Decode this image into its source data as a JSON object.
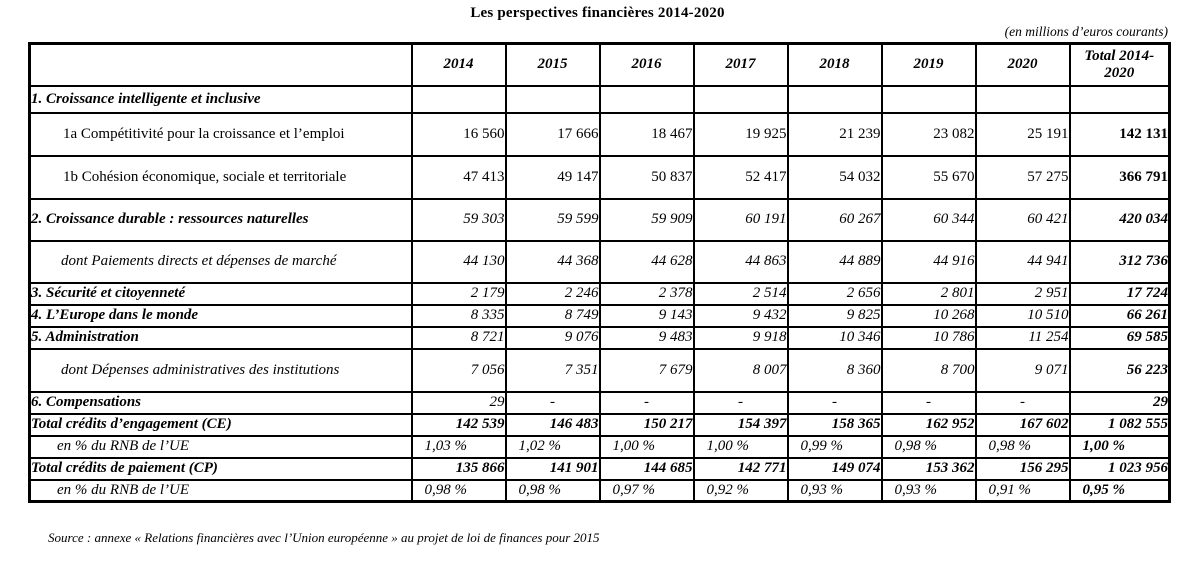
{
  "title": "Les perspectives financières 2014-2020",
  "subtitle": "(en millions d’euros courants)",
  "source": "Source : annexe « Relations financières avec l’Union européenne » au projet de loi de finances pour 2015",
  "table": {
    "columns": [
      "",
      "2014",
      "2015",
      "2016",
      "2017",
      "2018",
      "2019",
      "2020",
      "Total 2014-2020"
    ],
    "rows": [
      {
        "kind": "section",
        "label": "1. Croissance intelligente et inclusive",
        "values": [
          "",
          "",
          "",
          "",
          "",
          "",
          ""
        ],
        "total": ""
      },
      {
        "kind": "subplain",
        "label": "1a Compétitivité pour la croissance et l’emploi",
        "values": [
          "16 560",
          "17 666",
          "18 467",
          "19 925",
          "21 239",
          "23 082",
          "25 191"
        ],
        "total": "142 131"
      },
      {
        "kind": "subplain",
        "label": "1b Cohésion économique, sociale et territoriale",
        "values": [
          "47 413",
          "49 147",
          "50 837",
          "52 417",
          "54 032",
          "55 670",
          "57 275"
        ],
        "total": "366 791"
      },
      {
        "kind": "section",
        "label": "2. Croissance durable : ressources naturelles",
        "values": [
          "59 303",
          "59 599",
          "59 909",
          "60 191",
          "60 267",
          "60 344",
          "60 421"
        ],
        "total": "420 034"
      },
      {
        "kind": "subitalic",
        "label": "dont Paiements directs et dépenses de marché",
        "values": [
          "44 130",
          "44 368",
          "44 628",
          "44 863",
          "44 889",
          "44 916",
          "44 941"
        ],
        "total": "312 736"
      },
      {
        "kind": "section",
        "label": "3. Sécurité et citoyenneté",
        "values": [
          "2 179",
          "2 246",
          "2 378",
          "2 514",
          "2 656",
          "2 801",
          "2 951"
        ],
        "total": "17 724"
      },
      {
        "kind": "section",
        "label": "4. L’Europe dans le monde",
        "values": [
          "8 335",
          "8 749",
          "9 143",
          "9 432",
          "9 825",
          "10 268",
          "10 510"
        ],
        "total": "66 261"
      },
      {
        "kind": "section",
        "label": "5. Administration",
        "values": [
          "8 721",
          "9 076",
          "9 483",
          "9 918",
          "10 346",
          "10 786",
          "11 254"
        ],
        "total": "69 585"
      },
      {
        "kind": "subitalic",
        "label": "dont Dépenses administratives des institutions",
        "values": [
          "7 056",
          "7 351",
          "7 679",
          "8 007",
          "8 360",
          "8 700",
          "9 071"
        ],
        "total": "56 223"
      },
      {
        "kind": "section",
        "label": "6. Compensations",
        "values": [
          "29",
          "-",
          "-",
          "-",
          "-",
          "-",
          "-"
        ],
        "total": "29"
      },
      {
        "kind": "total",
        "label": "Total crédits d’engagement (CE)",
        "values": [
          "142 539",
          "146 483",
          "150 217",
          "154 397",
          "158 365",
          "162 952",
          "167 602"
        ],
        "total": "1 082 555"
      },
      {
        "kind": "pct",
        "label": "en % du RNB de l’UE",
        "values": [
          "1,03 %",
          "1,02 %",
          "1,00 %",
          "1,00 %",
          "0,99 %",
          "0,98 %",
          "0,98 %"
        ],
        "total": "1,00 %"
      },
      {
        "kind": "total",
        "label": "Total crédits de paiement (CP)",
        "values": [
          "135 866",
          "141 901",
          "144 685",
          "142 771",
          "149 074",
          "153 362",
          "156 295"
        ],
        "total": "1 023 956"
      },
      {
        "kind": "pct",
        "label": "en % du RNB de l’UE",
        "values": [
          "0,98 %",
          "0,98 %",
          "0,97 %",
          "0,92 %",
          "0,93 %",
          "0,93 %",
          "0,91 %"
        ],
        "total": "0,95 %"
      }
    ]
  }
}
